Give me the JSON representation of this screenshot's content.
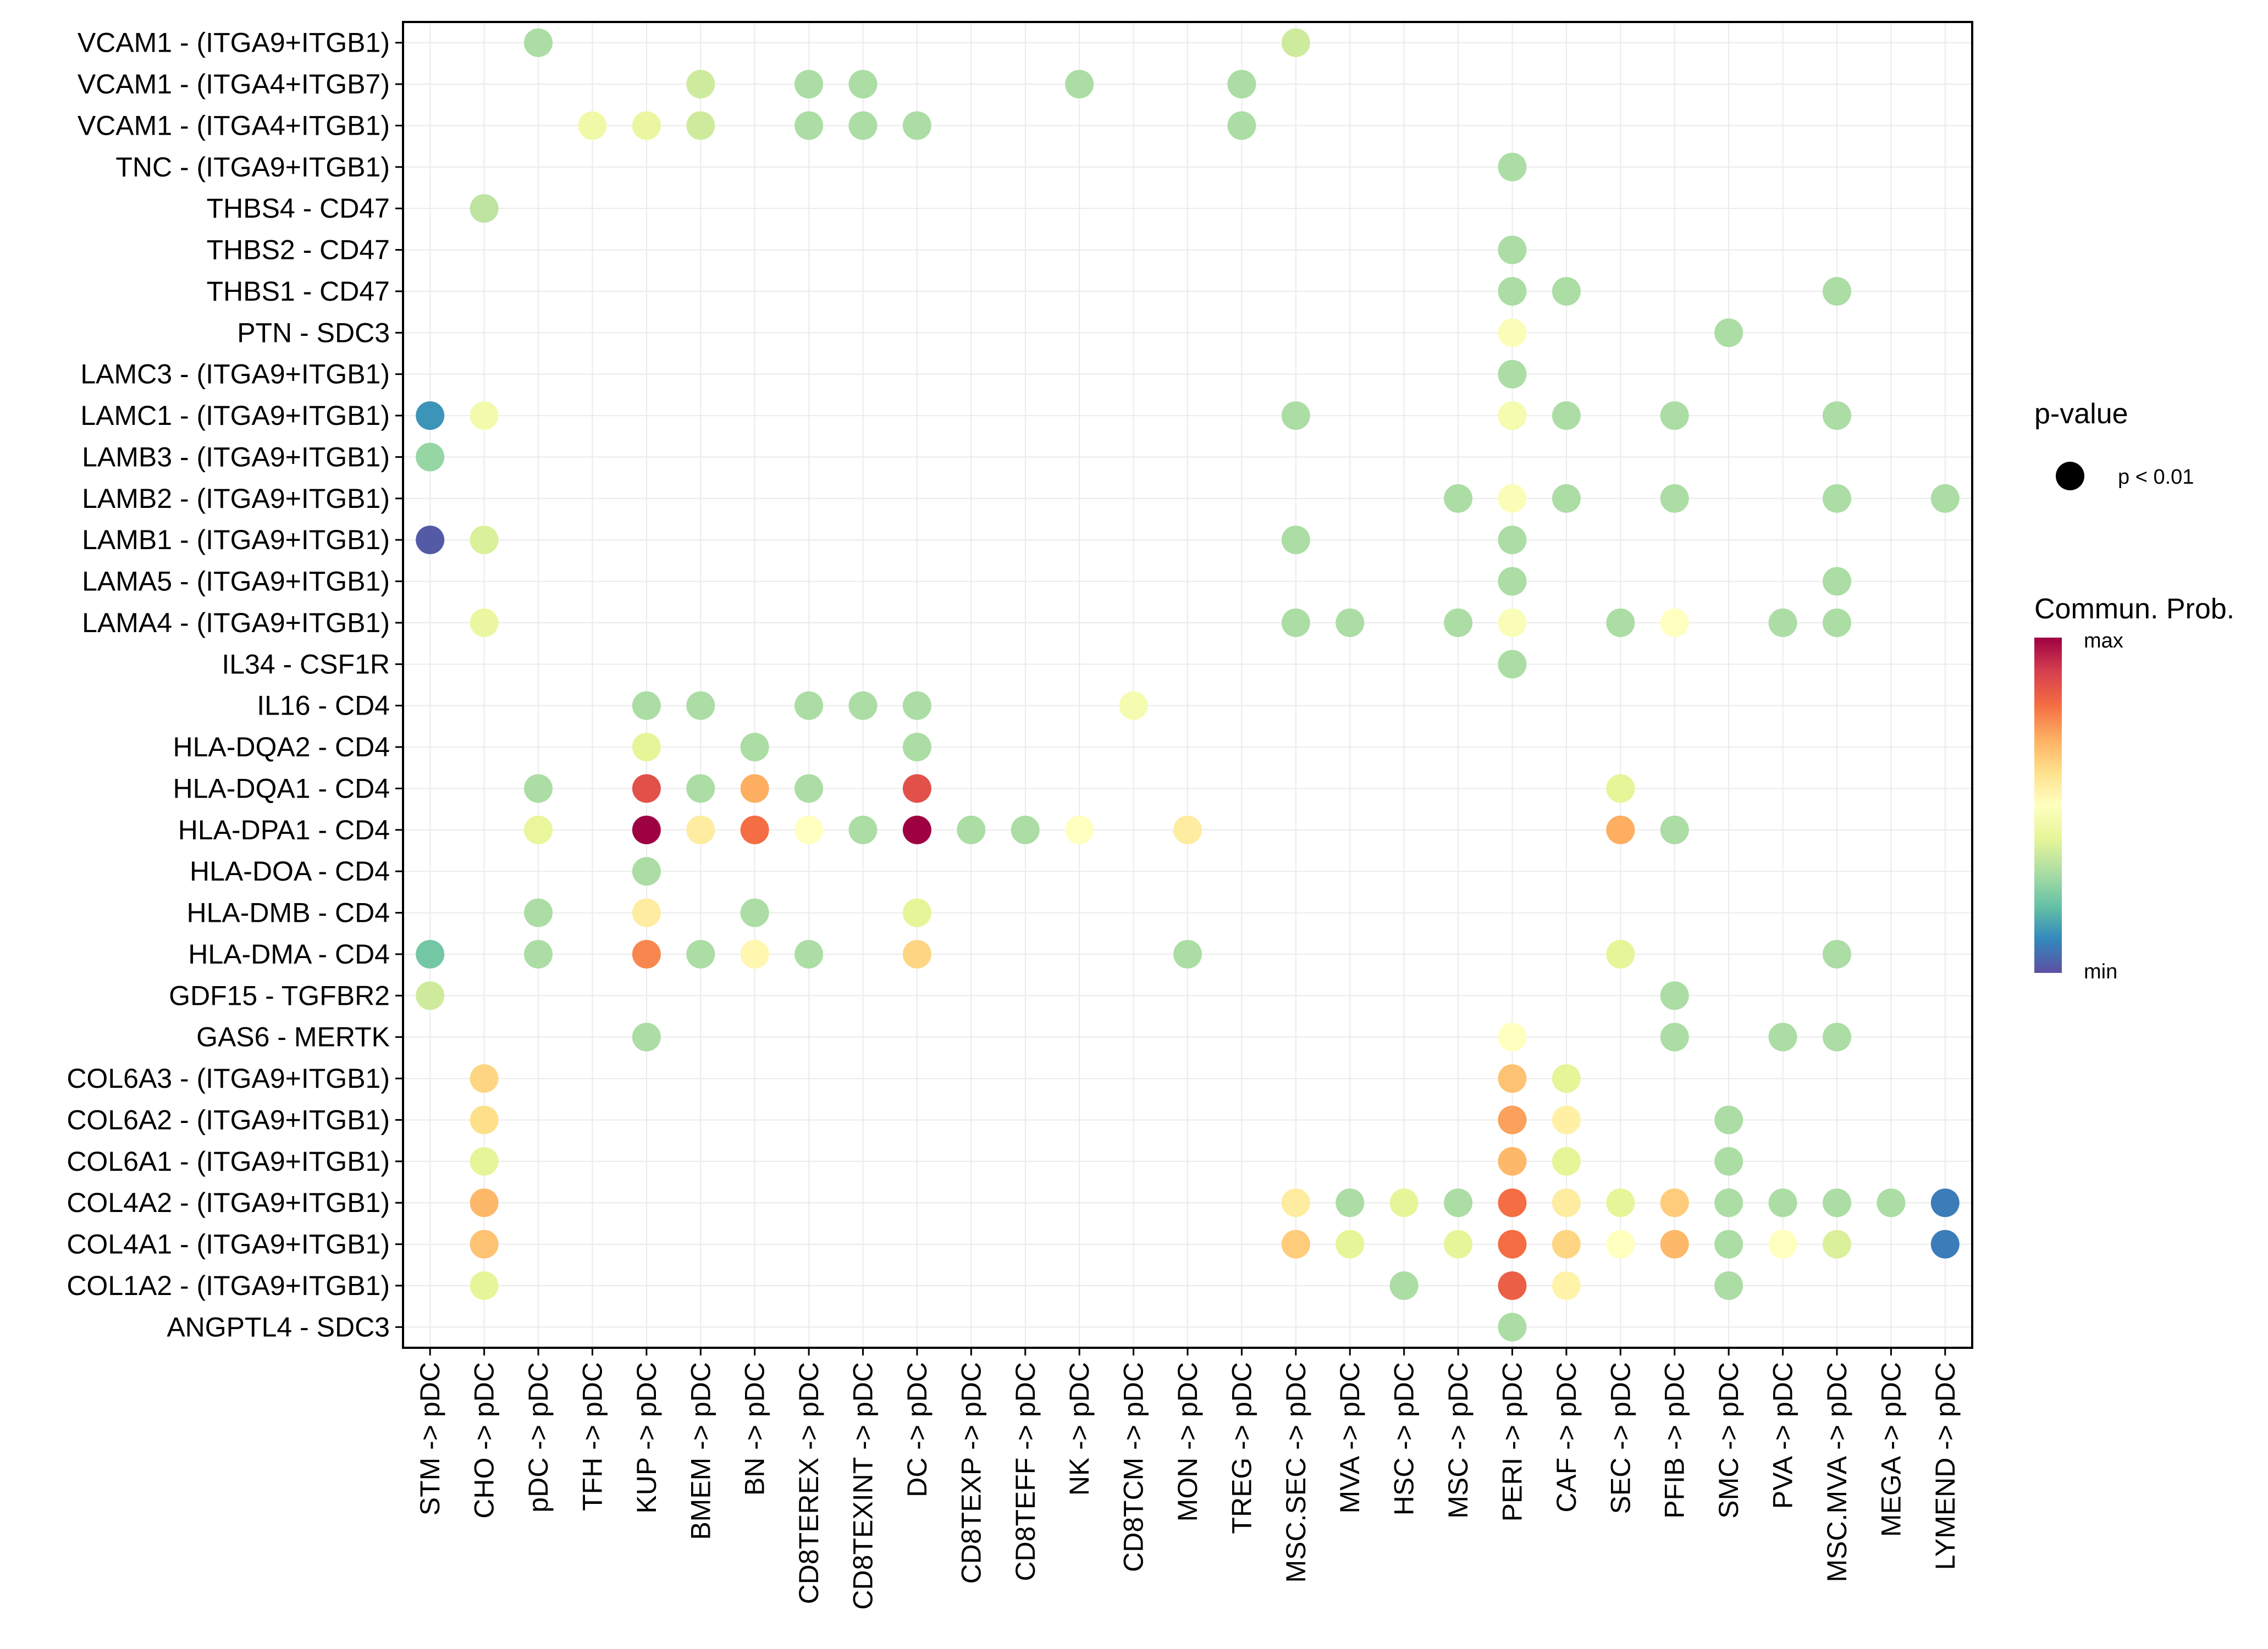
{
  "chart_data": {
    "type": "scatter",
    "subtype": "bubble-dotplot",
    "title": "",
    "xlabel": "",
    "ylabel": "",
    "grid": true,
    "legend_position": "right",
    "x": [
      "STM -> pDC",
      "CHO -> pDC",
      "pDC -> pDC",
      "TFH -> pDC",
      "KUP -> pDC",
      "BMEM -> pDC",
      "BN -> pDC",
      "CD8TEREX -> pDC",
      "CD8TEXINT -> pDC",
      "DC -> pDC",
      "CD8TEXP -> pDC",
      "CD8TEFF -> pDC",
      "NK -> pDC",
      "CD8TCM -> pDC",
      "MON -> pDC",
      "TREG -> pDC",
      "MSC.SEC -> pDC",
      "MVA -> pDC",
      "HSC -> pDC",
      "MSC -> pDC",
      "PERI -> pDC",
      "CAF -> pDC",
      "SEC -> pDC",
      "PFIB -> pDC",
      "SMC -> pDC",
      "PVA -> pDC",
      "MSC.MVA -> pDC",
      "MEGA -> pDC",
      "LYMEND -> pDC"
    ],
    "y": [
      "VCAM1 - (ITGA9+ITGB1)",
      "VCAM1 - (ITGA4+ITGB7)",
      "VCAM1 - (ITGA4+ITGB1)",
      "TNC - (ITGA9+ITGB1)",
      "THBS4 - CD47",
      "THBS2 - CD47",
      "THBS1 - CD47",
      "PTN - SDC3",
      "LAMC3 - (ITGA9+ITGB1)",
      "LAMC1 - (ITGA9+ITGB1)",
      "LAMB3 - (ITGA9+ITGB1)",
      "LAMB2 - (ITGA9+ITGB1)",
      "LAMB1 - (ITGA9+ITGB1)",
      "LAMA5 - (ITGA9+ITGB1)",
      "LAMA4 - (ITGA9+ITGB1)",
      "IL34 - CSF1R",
      "IL16 - CD4",
      "HLA-DQA2 - CD4",
      "HLA-DQA1 - CD4",
      "HLA-DPA1 - CD4",
      "HLA-DOA - CD4",
      "HLA-DMB - CD4",
      "HLA-DMA - CD4",
      "GDF15 - TGFBR2",
      "GAS6 - MERTK",
      "COL6A3 - (ITGA9+ITGB1)",
      "COL6A2 - (ITGA9+ITGB1)",
      "COL6A1 - (ITGA9+ITGB1)",
      "COL4A2 - (ITGA9+ITGB1)",
      "COL4A1 - (ITGA9+ITGB1)",
      "COL1A2 - (ITGA9+ITGB1)",
      "ANGPTL4 - SDC3"
    ],
    "points_note": "each point: [x_index, y_index, normalized commun. prob. 0=min..1=max]; all points p < 0.01",
    "points": [
      [
        2,
        0,
        0.3
      ],
      [
        16,
        0,
        0.36
      ],
      [
        5,
        1,
        0.36
      ],
      [
        7,
        1,
        0.3
      ],
      [
        8,
        1,
        0.3
      ],
      [
        12,
        1,
        0.3
      ],
      [
        15,
        1,
        0.3
      ],
      [
        3,
        2,
        0.44
      ],
      [
        4,
        2,
        0.42
      ],
      [
        5,
        2,
        0.36
      ],
      [
        7,
        2,
        0.3
      ],
      [
        8,
        2,
        0.3
      ],
      [
        9,
        2,
        0.3
      ],
      [
        15,
        2,
        0.3
      ],
      [
        20,
        3,
        0.3
      ],
      [
        1,
        4,
        0.33
      ],
      [
        20,
        5,
        0.3
      ],
      [
        20,
        6,
        0.3
      ],
      [
        21,
        6,
        0.3
      ],
      [
        26,
        6,
        0.3
      ],
      [
        20,
        7,
        0.48
      ],
      [
        24,
        7,
        0.3
      ],
      [
        20,
        8,
        0.3
      ],
      [
        0,
        9,
        0.12
      ],
      [
        1,
        9,
        0.45
      ],
      [
        16,
        9,
        0.3
      ],
      [
        20,
        9,
        0.46
      ],
      [
        21,
        9,
        0.3
      ],
      [
        23,
        9,
        0.3
      ],
      [
        26,
        9,
        0.3
      ],
      [
        0,
        10,
        0.27
      ],
      [
        19,
        11,
        0.3
      ],
      [
        20,
        11,
        0.48
      ],
      [
        21,
        11,
        0.3
      ],
      [
        23,
        11,
        0.3
      ],
      [
        26,
        11,
        0.3
      ],
      [
        28,
        11,
        0.3
      ],
      [
        0,
        12,
        0.02
      ],
      [
        1,
        12,
        0.38
      ],
      [
        16,
        12,
        0.3
      ],
      [
        20,
        12,
        0.3
      ],
      [
        20,
        13,
        0.3
      ],
      [
        26,
        13,
        0.3
      ],
      [
        1,
        14,
        0.42
      ],
      [
        16,
        14,
        0.3
      ],
      [
        17,
        14,
        0.3
      ],
      [
        19,
        14,
        0.3
      ],
      [
        20,
        14,
        0.48
      ],
      [
        22,
        14,
        0.3
      ],
      [
        23,
        14,
        0.5
      ],
      [
        25,
        14,
        0.3
      ],
      [
        26,
        14,
        0.3
      ],
      [
        20,
        15,
        0.3
      ],
      [
        4,
        16,
        0.3
      ],
      [
        5,
        16,
        0.3
      ],
      [
        7,
        16,
        0.3
      ],
      [
        8,
        16,
        0.3
      ],
      [
        9,
        16,
        0.3
      ],
      [
        13,
        16,
        0.46
      ],
      [
        4,
        17,
        0.4
      ],
      [
        6,
        17,
        0.3
      ],
      [
        9,
        17,
        0.3
      ],
      [
        2,
        18,
        0.3
      ],
      [
        4,
        18,
        0.86
      ],
      [
        5,
        18,
        0.3
      ],
      [
        6,
        18,
        0.7
      ],
      [
        7,
        18,
        0.3
      ],
      [
        9,
        18,
        0.86
      ],
      [
        22,
        18,
        0.4
      ],
      [
        2,
        19,
        0.41
      ],
      [
        4,
        19,
        1.0
      ],
      [
        5,
        19,
        0.56
      ],
      [
        6,
        19,
        0.8
      ],
      [
        7,
        19,
        0.5
      ],
      [
        8,
        19,
        0.3
      ],
      [
        9,
        19,
        1.0
      ],
      [
        10,
        19,
        0.3
      ],
      [
        11,
        19,
        0.3
      ],
      [
        12,
        19,
        0.5
      ],
      [
        14,
        19,
        0.56
      ],
      [
        22,
        19,
        0.7
      ],
      [
        23,
        19,
        0.3
      ],
      [
        4,
        20,
        0.3
      ],
      [
        2,
        21,
        0.3
      ],
      [
        4,
        21,
        0.56
      ],
      [
        6,
        21,
        0.3
      ],
      [
        9,
        21,
        0.4
      ],
      [
        0,
        22,
        0.22
      ],
      [
        2,
        22,
        0.3
      ],
      [
        4,
        22,
        0.76
      ],
      [
        5,
        22,
        0.3
      ],
      [
        6,
        22,
        0.53
      ],
      [
        7,
        22,
        0.3
      ],
      [
        9,
        22,
        0.62
      ],
      [
        14,
        22,
        0.3
      ],
      [
        22,
        22,
        0.4
      ],
      [
        26,
        22,
        0.3
      ],
      [
        0,
        23,
        0.36
      ],
      [
        23,
        23,
        0.3
      ],
      [
        4,
        24,
        0.3
      ],
      [
        20,
        24,
        0.5
      ],
      [
        23,
        24,
        0.3
      ],
      [
        25,
        24,
        0.3
      ],
      [
        26,
        24,
        0.3
      ],
      [
        1,
        25,
        0.62
      ],
      [
        20,
        25,
        0.66
      ],
      [
        21,
        25,
        0.4
      ],
      [
        1,
        26,
        0.6
      ],
      [
        20,
        26,
        0.72
      ],
      [
        21,
        26,
        0.55
      ],
      [
        24,
        26,
        0.3
      ],
      [
        1,
        27,
        0.4
      ],
      [
        20,
        27,
        0.68
      ],
      [
        21,
        27,
        0.4
      ],
      [
        24,
        27,
        0.3
      ],
      [
        1,
        28,
        0.68
      ],
      [
        16,
        28,
        0.56
      ],
      [
        17,
        28,
        0.3
      ],
      [
        18,
        28,
        0.4
      ],
      [
        19,
        28,
        0.3
      ],
      [
        20,
        28,
        0.8
      ],
      [
        21,
        28,
        0.56
      ],
      [
        22,
        28,
        0.4
      ],
      [
        23,
        28,
        0.64
      ],
      [
        24,
        28,
        0.3
      ],
      [
        25,
        28,
        0.3
      ],
      [
        26,
        28,
        0.3
      ],
      [
        27,
        28,
        0.3
      ],
      [
        28,
        28,
        0.08
      ],
      [
        1,
        29,
        0.66
      ],
      [
        16,
        29,
        0.64
      ],
      [
        17,
        29,
        0.4
      ],
      [
        19,
        29,
        0.4
      ],
      [
        20,
        29,
        0.8
      ],
      [
        21,
        29,
        0.62
      ],
      [
        22,
        29,
        0.5
      ],
      [
        23,
        29,
        0.68
      ],
      [
        24,
        29,
        0.3
      ],
      [
        25,
        29,
        0.5
      ],
      [
        26,
        29,
        0.38
      ],
      [
        28,
        29,
        0.08
      ],
      [
        1,
        30,
        0.4
      ],
      [
        18,
        30,
        0.3
      ],
      [
        20,
        30,
        0.83
      ],
      [
        21,
        30,
        0.54
      ],
      [
        24,
        30,
        0.3
      ],
      [
        20,
        31,
        0.3
      ]
    ],
    "legend": {
      "pvalue_title": "p-value",
      "pvalue_items": [
        "p < 0.01"
      ],
      "color_title": "Commun. Prob.",
      "color_max_label": "max",
      "color_min_label": "min",
      "colormap": "Spectral",
      "color_stops": [
        "#5E4FA2",
        "#3288BD",
        "#66C2A5",
        "#ABDDA4",
        "#E6F598",
        "#FFFFBF",
        "#FEE08B",
        "#FDAE61",
        "#F46D43",
        "#D53E4F",
        "#9E0142"
      ]
    }
  }
}
